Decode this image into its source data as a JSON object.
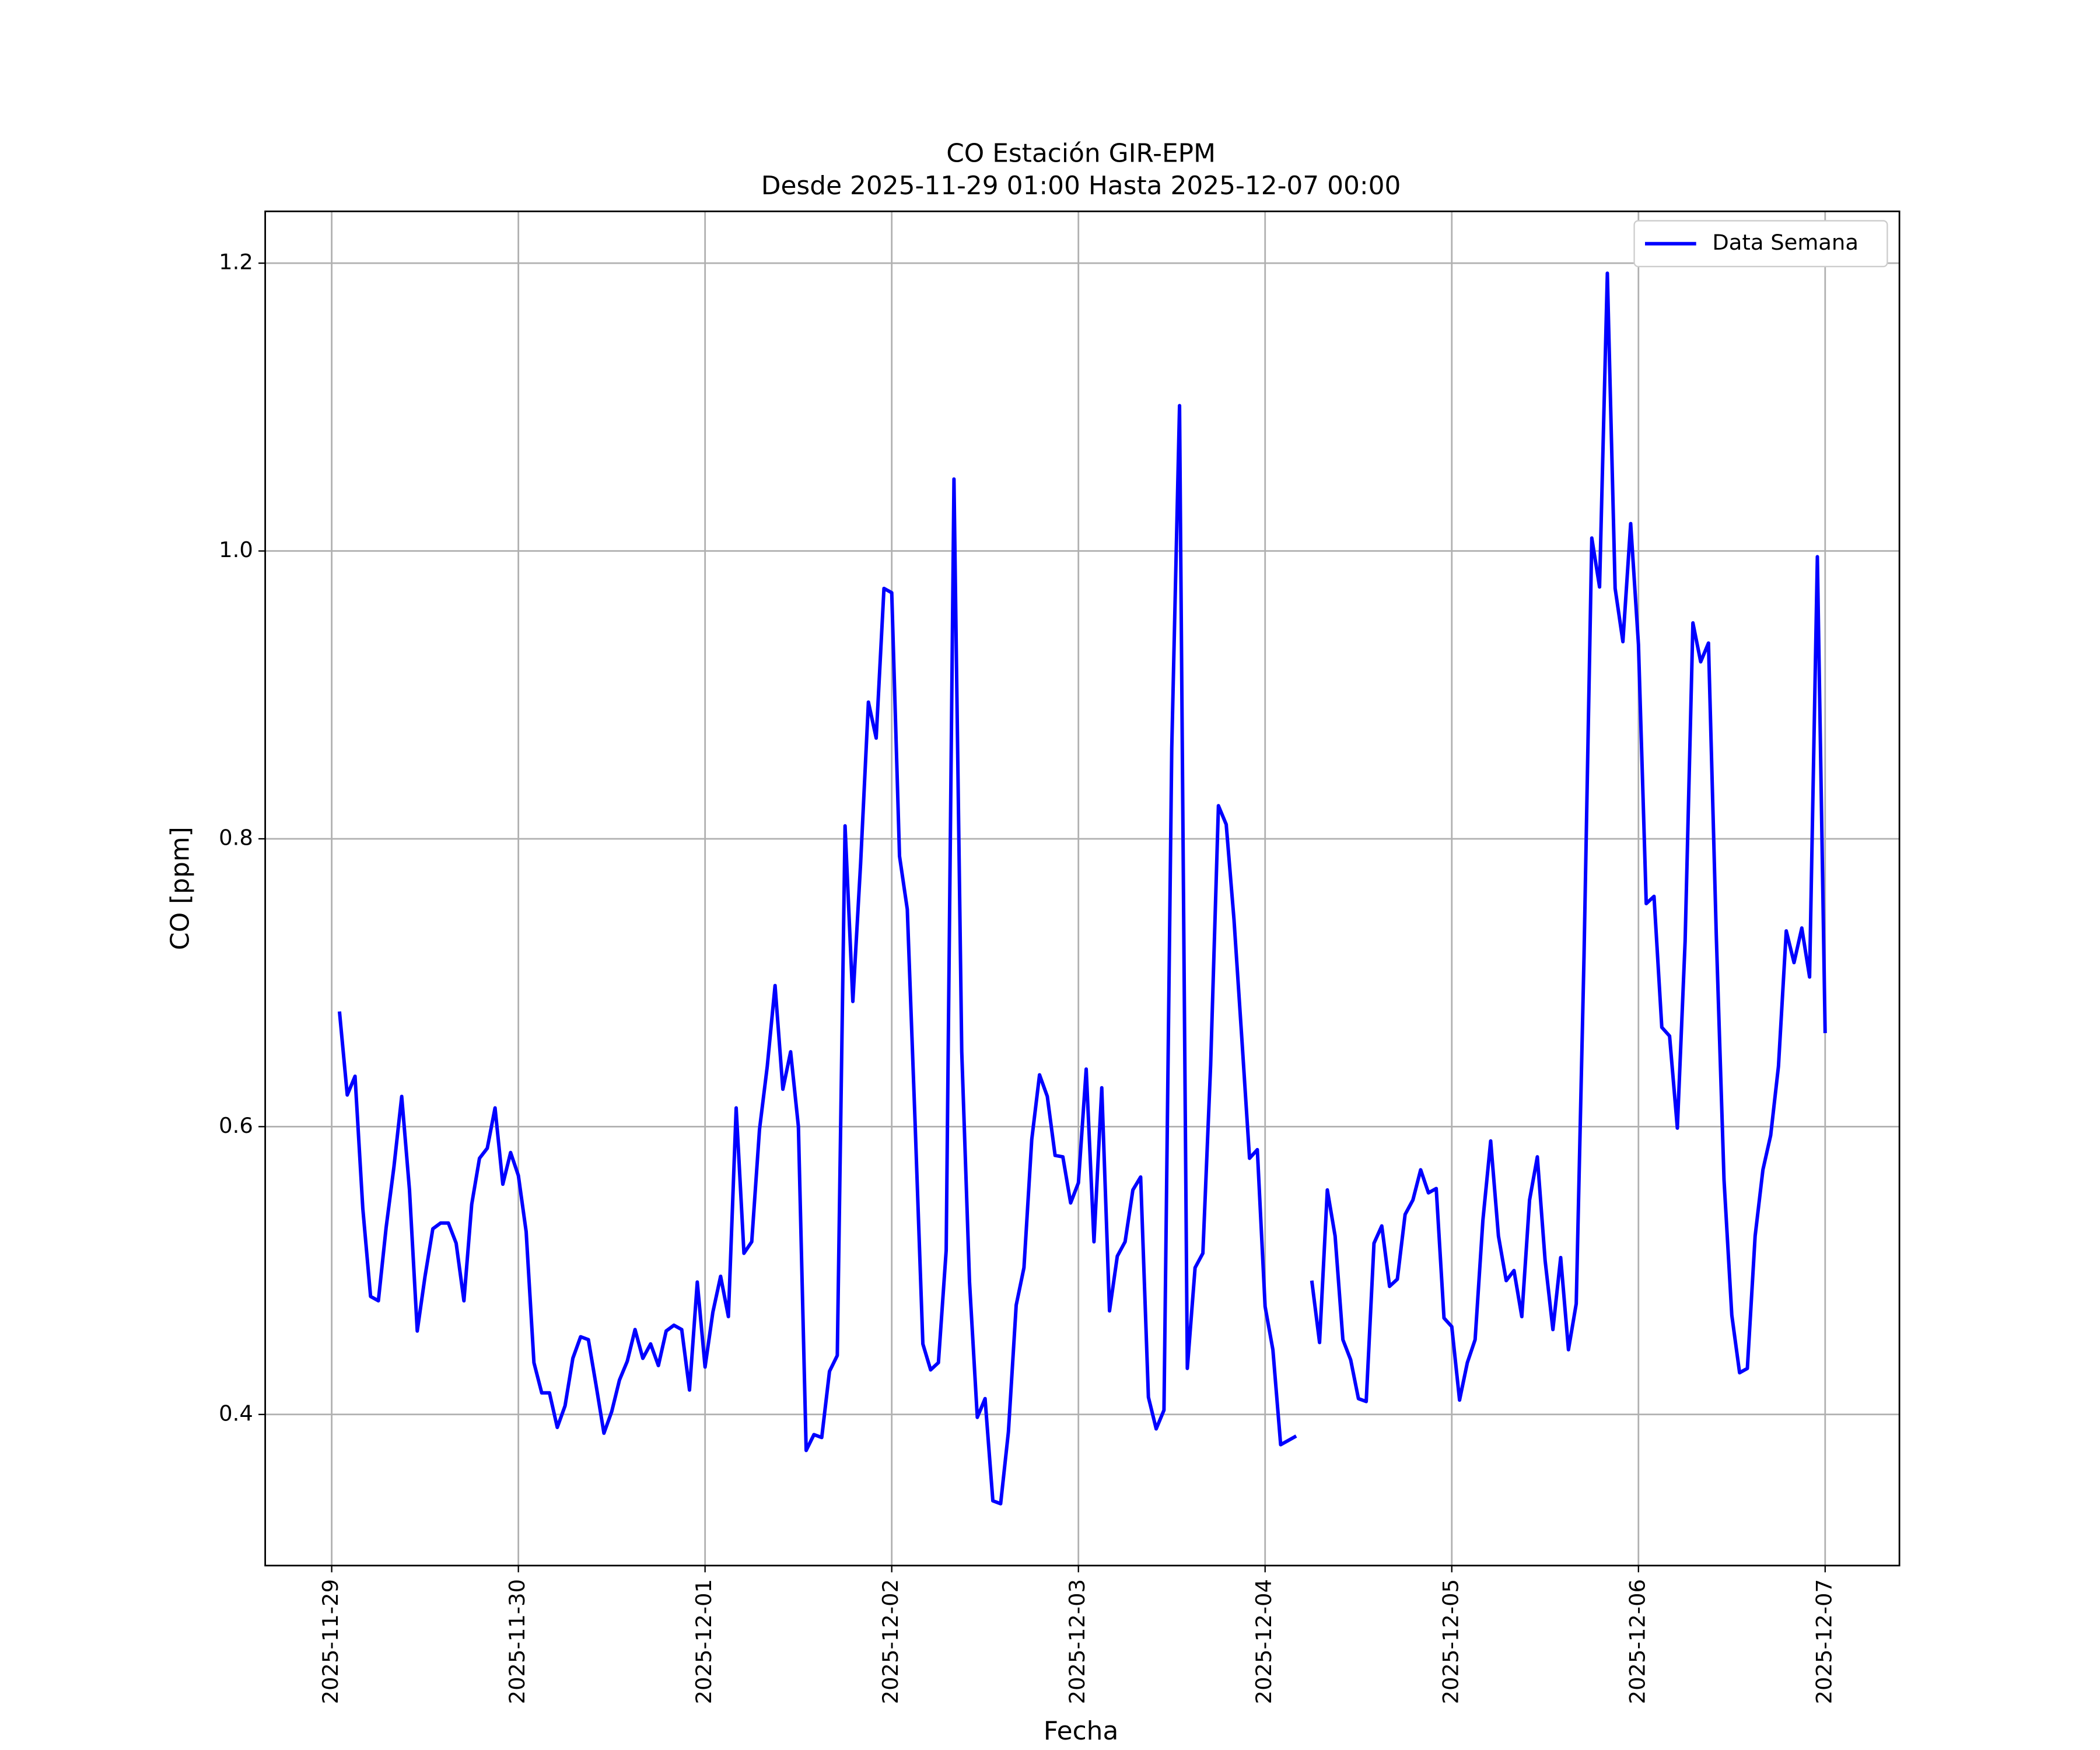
{
  "chart_data": {
    "type": "line",
    "title": "CO Estación GIR-EPM",
    "subtitle": "Desde 2025-11-29 01:00 Hasta 2025-12-07 00:00",
    "xlabel": "Fecha",
    "ylabel": "CO [ppm]",
    "x": [
      "2025-11-29 01:00",
      "2025-11-29 02:00",
      "2025-11-29 03:00",
      "2025-11-29 04:00",
      "2025-11-29 05:00",
      "2025-11-29 06:00",
      "2025-11-29 07:00",
      "2025-11-29 08:00",
      "2025-11-29 09:00",
      "2025-11-29 10:00",
      "2025-11-29 11:00",
      "2025-11-29 12:00",
      "2025-11-29 13:00",
      "2025-11-29 14:00",
      "2025-11-29 15:00",
      "2025-11-29 16:00",
      "2025-11-29 17:00",
      "2025-11-29 18:00",
      "2025-11-29 19:00",
      "2025-11-29 20:00",
      "2025-11-29 21:00",
      "2025-11-29 22:00",
      "2025-11-29 23:00",
      "2025-11-30 00:00",
      "2025-11-30 01:00",
      "2025-11-30 02:00",
      "2025-11-30 03:00",
      "2025-11-30 04:00",
      "2025-11-30 05:00",
      "2025-11-30 06:00",
      "2025-11-30 07:00",
      "2025-11-30 08:00",
      "2025-11-30 09:00",
      "2025-11-30 10:00",
      "2025-11-30 11:00",
      "2025-11-30 12:00",
      "2025-11-30 13:00",
      "2025-11-30 14:00",
      "2025-11-30 15:00",
      "2025-11-30 16:00",
      "2025-11-30 17:00",
      "2025-11-30 18:00",
      "2025-11-30 19:00",
      "2025-11-30 20:00",
      "2025-11-30 21:00",
      "2025-11-30 22:00",
      "2025-11-30 23:00",
      "2025-12-01 00:00",
      "2025-12-01 01:00",
      "2025-12-01 02:00",
      "2025-12-01 03:00",
      "2025-12-01 04:00",
      "2025-12-01 05:00",
      "2025-12-01 06:00",
      "2025-12-01 07:00",
      "2025-12-01 08:00",
      "2025-12-01 09:00",
      "2025-12-01 10:00",
      "2025-12-01 11:00",
      "2025-12-01 12:00",
      "2025-12-01 13:00",
      "2025-12-01 14:00",
      "2025-12-01 15:00",
      "2025-12-01 16:00",
      "2025-12-01 17:00",
      "2025-12-01 18:00",
      "2025-12-01 19:00",
      "2025-12-01 20:00",
      "2025-12-01 21:00",
      "2025-12-01 22:00",
      "2025-12-01 23:00",
      "2025-12-02 00:00",
      "2025-12-02 01:00",
      "2025-12-02 02:00",
      "2025-12-02 03:00",
      "2025-12-02 04:00",
      "2025-12-02 05:00",
      "2025-12-02 06:00",
      "2025-12-02 07:00",
      "2025-12-02 08:00",
      "2025-12-02 09:00",
      "2025-12-02 10:00",
      "2025-12-02 11:00",
      "2025-12-02 12:00",
      "2025-12-02 13:00",
      "2025-12-02 14:00",
      "2025-12-02 15:00",
      "2025-12-02 16:00",
      "2025-12-02 17:00",
      "2025-12-02 18:00",
      "2025-12-02 19:00",
      "2025-12-02 20:00",
      "2025-12-02 21:00",
      "2025-12-02 22:00",
      "2025-12-02 23:00",
      "2025-12-03 00:00",
      "2025-12-03 01:00",
      "2025-12-03 02:00",
      "2025-12-03 03:00",
      "2025-12-03 04:00",
      "2025-12-03 05:00",
      "2025-12-03 06:00",
      "2025-12-03 07:00",
      "2025-12-03 08:00",
      "2025-12-03 09:00",
      "2025-12-03 10:00",
      "2025-12-03 11:00",
      "2025-12-03 12:00",
      "2025-12-03 13:00",
      "2025-12-03 14:00",
      "2025-12-03 15:00",
      "2025-12-03 16:00",
      "2025-12-03 17:00",
      "2025-12-03 18:00",
      "2025-12-03 19:00",
      "2025-12-03 20:00",
      "2025-12-03 21:00",
      "2025-12-03 22:00",
      "2025-12-03 23:00",
      "2025-12-04 00:00",
      "2025-12-04 01:00",
      "2025-12-04 02:00",
      "2025-12-04 03:00",
      "2025-12-04 04:00",
      "2025-12-04 05:00",
      "2025-12-04 06:00",
      "2025-12-04 07:00",
      "2025-12-04 08:00",
      "2025-12-04 09:00",
      "2025-12-04 10:00",
      "2025-12-04 11:00",
      "2025-12-04 12:00",
      "2025-12-04 13:00",
      "2025-12-04 14:00",
      "2025-12-04 15:00",
      "2025-12-04 16:00",
      "2025-12-04 17:00",
      "2025-12-04 18:00",
      "2025-12-04 19:00",
      "2025-12-04 20:00",
      "2025-12-04 21:00",
      "2025-12-04 22:00",
      "2025-12-04 23:00",
      "2025-12-05 00:00",
      "2025-12-05 01:00",
      "2025-12-05 02:00",
      "2025-12-05 03:00",
      "2025-12-05 04:00",
      "2025-12-05 05:00",
      "2025-12-05 06:00",
      "2025-12-05 07:00",
      "2025-12-05 08:00",
      "2025-12-05 09:00",
      "2025-12-05 10:00",
      "2025-12-05 11:00",
      "2025-12-05 12:00",
      "2025-12-05 13:00",
      "2025-12-05 14:00",
      "2025-12-05 15:00",
      "2025-12-05 16:00",
      "2025-12-05 17:00",
      "2025-12-05 18:00",
      "2025-12-05 19:00",
      "2025-12-05 20:00",
      "2025-12-05 21:00",
      "2025-12-05 22:00",
      "2025-12-05 23:00",
      "2025-12-06 00:00",
      "2025-12-06 01:00",
      "2025-12-06 02:00",
      "2025-12-06 03:00",
      "2025-12-06 04:00",
      "2025-12-06 05:00",
      "2025-12-06 06:00",
      "2025-12-06 07:00",
      "2025-12-06 08:00",
      "2025-12-06 09:00",
      "2025-12-06 10:00",
      "2025-12-06 11:00",
      "2025-12-06 12:00",
      "2025-12-06 13:00",
      "2025-12-06 14:00",
      "2025-12-06 15:00",
      "2025-12-06 16:00",
      "2025-12-06 17:00",
      "2025-12-06 18:00",
      "2025-12-06 19:00",
      "2025-12-06 20:00",
      "2025-12-06 21:00",
      "2025-12-06 22:00",
      "2025-12-06 23:00",
      "2025-12-07 00:00"
    ],
    "series": [
      {
        "name": "Data Semana",
        "color": "#0000ff",
        "values": [
          0.68,
          0.622,
          0.635,
          0.543,
          0.482,
          0.479,
          0.53,
          0.572,
          0.621,
          0.556,
          0.458,
          0.496,
          0.529,
          0.533,
          0.533,
          0.519,
          0.479,
          0.546,
          0.578,
          0.585,
          0.613,
          0.56,
          0.582,
          0.566,
          0.527,
          0.436,
          0.415,
          0.415,
          0.391,
          0.406,
          0.439,
          0.454,
          0.452,
          0.42,
          0.387,
          0.402,
          0.424,
          0.437,
          0.459,
          0.439,
          0.449,
          0.434,
          0.458,
          0.462,
          0.459,
          0.417,
          0.492,
          0.433,
          0.471,
          0.496,
          0.468,
          0.613,
          0.512,
          0.52,
          0.598,
          0.642,
          0.698,
          0.626,
          0.652,
          0.6,
          0.375,
          0.386,
          0.384,
          0.43,
          0.441,
          0.809,
          0.687,
          0.783,
          0.895,
          0.87,
          0.974,
          0.971,
          0.788,
          0.751,
          0.603,
          0.449,
          0.431,
          0.436,
          0.514,
          1.05,
          0.652,
          0.492,
          0.398,
          0.411,
          0.34,
          0.338,
          0.388,
          0.476,
          0.502,
          0.591,
          0.636,
          0.621,
          0.58,
          0.579,
          0.547,
          0.561,
          0.64,
          0.52,
          0.627,
          0.472,
          0.51,
          0.52,
          0.556,
          0.565,
          0.412,
          0.39,
          0.403,
          0.863,
          1.101,
          0.432,
          0.502,
          0.512,
          0.643,
          0.823,
          0.81,
          0.744,
          0.662,
          0.578,
          0.584,
          0.475,
          0.445,
          0.379,
          0.382,
          0.385,
          null,
          0.493,
          0.45,
          0.556,
          0.524,
          0.452,
          0.438,
          0.411,
          0.409,
          0.519,
          0.531,
          0.489,
          0.494,
          0.539,
          0.549,
          0.57,
          0.554,
          0.557,
          0.467,
          0.461,
          0.41,
          0.436,
          0.452,
          0.535,
          0.59,
          0.524,
          0.493,
          0.5,
          0.468,
          0.549,
          0.579,
          0.507,
          0.459,
          0.509,
          0.445,
          0.477,
          0.718,
          1.009,
          0.975,
          1.193,
          0.974,
          0.937,
          1.019,
          0.935,
          0.755,
          0.76,
          0.669,
          0.663,
          0.599,
          0.729,
          0.95,
          0.923,
          0.936,
          0.734,
          0.563,
          0.469,
          0.429,
          0.432,
          0.524,
          0.57,
          0.594,
          0.642,
          0.736,
          0.714,
          0.738,
          0.704,
          0.996,
          0.665
        ]
      }
    ],
    "xlim": [
      "2025-11-28 15:27",
      "2025-12-07 09:33"
    ],
    "xticks": [
      "2025-11-29",
      "2025-11-30",
      "2025-12-01",
      "2025-12-02",
      "2025-12-03",
      "2025-12-04",
      "2025-12-05",
      "2025-12-06",
      "2025-12-07"
    ],
    "ylim": [
      0.295,
      1.236
    ],
    "yticks": [
      0.4,
      0.6,
      0.8,
      {
        "value": 1,
        "label": "1.0"
      },
      1.2
    ],
    "grid": true,
    "legend": "upper-right"
  }
}
